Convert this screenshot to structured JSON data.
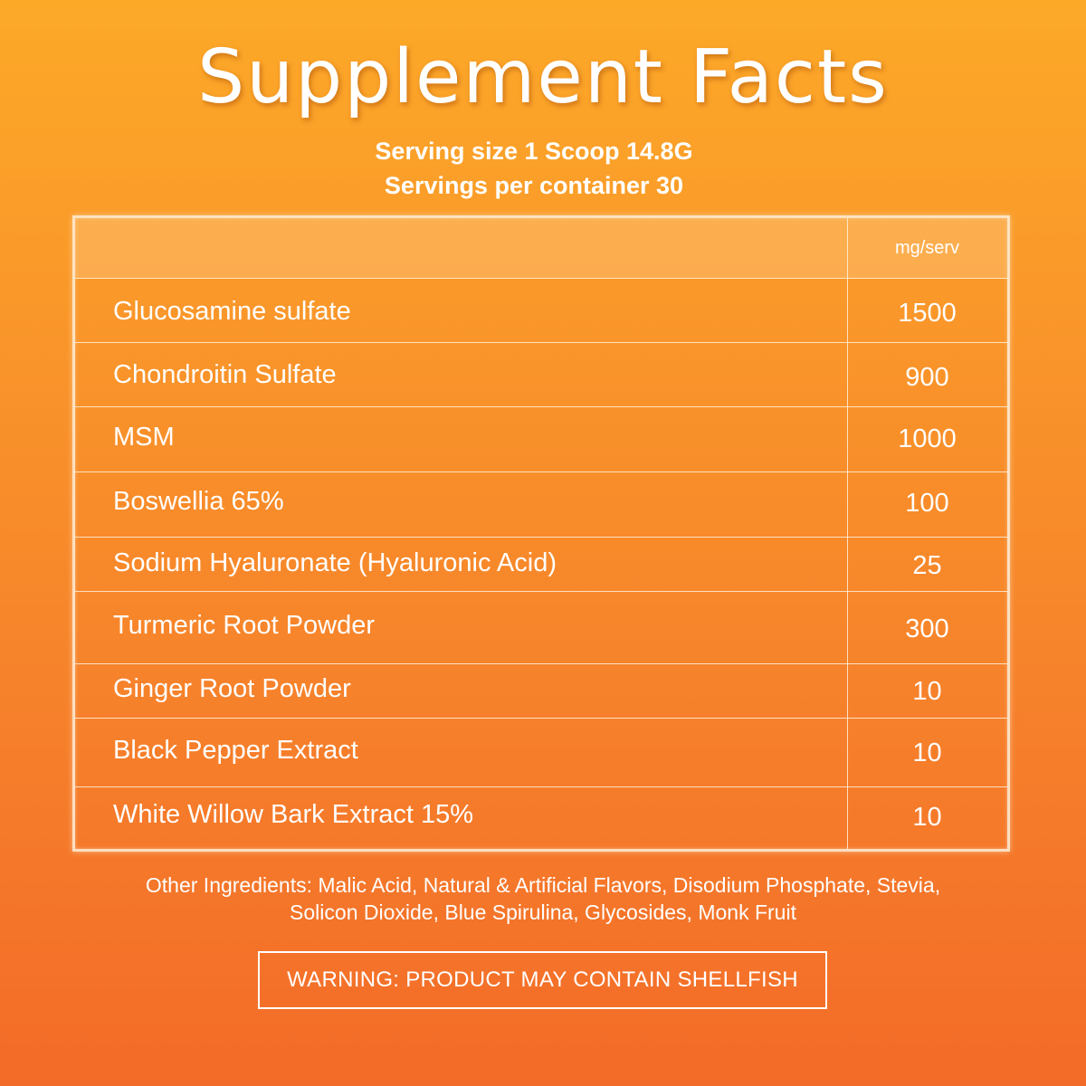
{
  "title": "Supplement Facts",
  "serving_size": "Serving size 1 Scoop 14.8G",
  "servings_per_container": "Servings per container 30",
  "table": {
    "unit_header": "mg/serv",
    "rows": [
      {
        "name": "Glucosamine sulfate",
        "amount": "1500"
      },
      {
        "name": "Chondroitin Sulfate",
        "amount": "900"
      },
      {
        "name": "MSM",
        "amount": "1000"
      },
      {
        "name": "Boswellia 65%",
        "amount": "100"
      },
      {
        "name": "Sodium Hyaluronate (Hyaluronic Acid)",
        "amount": "25"
      },
      {
        "name": "Turmeric Root Powder",
        "amount": "300"
      },
      {
        "name": "Ginger Root Powder",
        "amount": "10"
      },
      {
        "name": "Black Pepper Extract",
        "amount": "10"
      },
      {
        "name": "White Willow Bark Extract 15%",
        "amount": "10"
      }
    ]
  },
  "other_ingredients": {
    "line1": "Other Ingredients: Malic Acid, Natural & Artificial Flavors, Disodium Phosphate, Stevia,",
    "line2": "Solicon Dioxide, Blue Spirulina, Glycosides, Monk Fruit"
  },
  "warning": "WARNING: PRODUCT MAY CONTAIN SHELLFISH",
  "colors": {
    "background_top": "#fca928",
    "background_bottom": "#f36b28",
    "text": "#ffffff"
  }
}
